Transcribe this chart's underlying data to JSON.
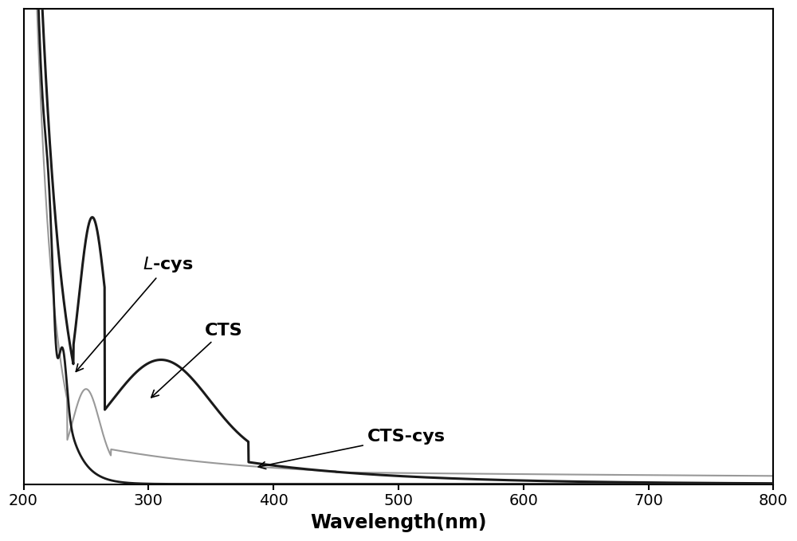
{
  "title": "",
  "xlabel": "Wavelength(nm)",
  "ylabel": "",
  "xlim": [
    200,
    800
  ],
  "x_ticks": [
    200,
    300,
    400,
    500,
    600,
    700,
    800
  ],
  "background_color": "#ffffff",
  "line_colors": {
    "L-cys": "#1a1a1a",
    "CTS": "#1a1a1a",
    "CTS-cys": "#999999"
  },
  "line_widths": {
    "L-cys": 2.0,
    "CTS": 2.2,
    "CTS-cys": 1.5
  },
  "xlabel_fontsize": 17,
  "xlabel_fontweight": "bold",
  "tick_labelsize": 14
}
